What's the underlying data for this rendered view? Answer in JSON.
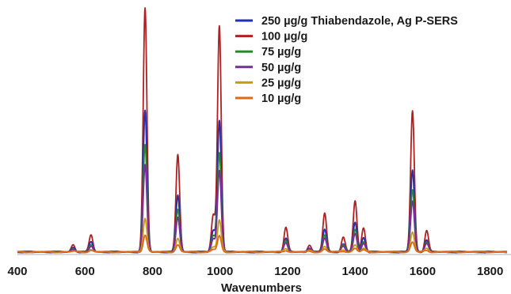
{
  "chart_data": {
    "type": "line",
    "title": "",
    "xlabel": "Wavenumbers",
    "ylabel": "",
    "xlim": [
      400,
      1850
    ],
    "ylim": [
      0,
      100
    ],
    "grid": false,
    "legend_position": "top-right",
    "x_ticks": [
      "400",
      "600",
      "800",
      "1000",
      "1200",
      "1400",
      "1600",
      "1800"
    ],
    "series": [
      {
        "name": "250 µg/g Thiabendazole, Ag P-SERS",
        "color": "#2030b0",
        "scale": 0.58
      },
      {
        "name": "100 µg/g",
        "color": "#b02020",
        "scale": 1.0
      },
      {
        "name": "75 µg/g",
        "color": "#2a8a2a",
        "scale": 0.44
      },
      {
        "name": "50 µg/g",
        "color": "#7a2a9a",
        "scale": 0.36
      },
      {
        "name": "25 µg/g",
        "color": "#c89a10",
        "scale": 0.14
      },
      {
        "name": "10 µg/g",
        "color": "#e06818",
        "scale": 0.07
      }
    ],
    "peaks": [
      {
        "x": 565,
        "height": 3
      },
      {
        "x": 618,
        "height": 7
      },
      {
        "x": 778,
        "height": 100
      },
      {
        "x": 875,
        "height": 40
      },
      {
        "x": 980,
        "height": 15
      },
      {
        "x": 998,
        "height": 93
      },
      {
        "x": 1195,
        "height": 10
      },
      {
        "x": 1265,
        "height": 3
      },
      {
        "x": 1310,
        "height": 16
      },
      {
        "x": 1365,
        "height": 6
      },
      {
        "x": 1400,
        "height": 21
      },
      {
        "x": 1425,
        "height": 10
      },
      {
        "x": 1570,
        "height": 58
      },
      {
        "x": 1612,
        "height": 9
      }
    ]
  }
}
